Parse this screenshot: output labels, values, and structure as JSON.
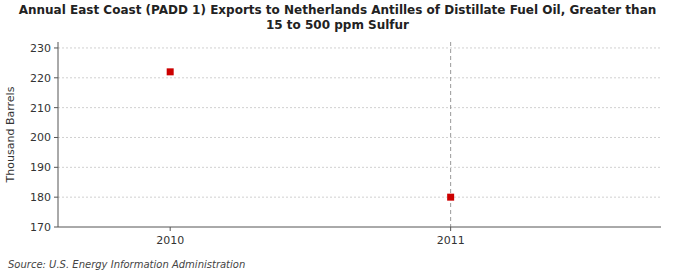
{
  "chart_data": {
    "type": "scatter",
    "title": "Annual East Coast (PADD 1) Exports to Netherlands Antilles of Distillate Fuel Oil, Greater than\n15 to 500 ppm Sulfur",
    "ylabel": "Thousand Barrels",
    "annotations": [
      "Source: U.S. Energy Information Administration"
    ],
    "x": [
      2010,
      2011
    ],
    "values": [
      222,
      180
    ],
    "color": "#cc0000",
    "marker": "square",
    "xlim": [
      2009.6,
      2011.75
    ],
    "xticks": [
      2010,
      2011
    ],
    "ylim": [
      170,
      232
    ],
    "yticks": [
      170,
      180,
      190,
      200,
      210,
      220,
      230
    ],
    "grid": true,
    "reference_line": {
      "x": 2011
    }
  }
}
